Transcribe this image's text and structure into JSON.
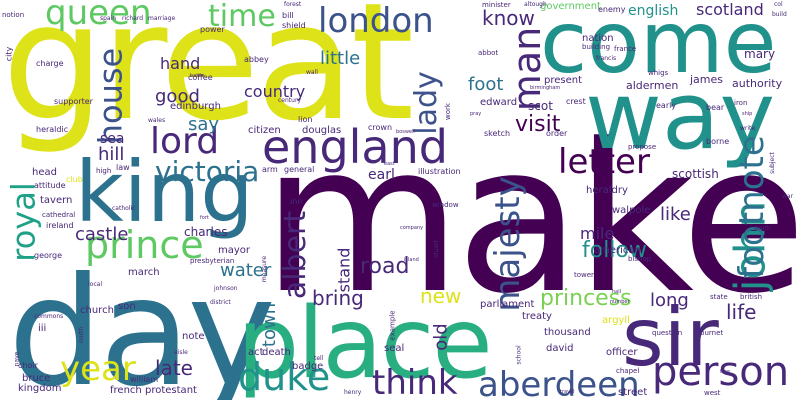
{
  "words": {
    "make": "make",
    "great": "great",
    "day": "day",
    "come": "come",
    "way": "way",
    "place": "place",
    "king": "king",
    "sir": "sir",
    "england": "england",
    "prince": "prince",
    "person": "person",
    "duke": "duke",
    "aberdeen": "aberdeen",
    "think": "think",
    "year": "year",
    "letter": "letter",
    "london": "london",
    "queen": "queen",
    "time": "time",
    "house": "house",
    "lord": "lord",
    "man": "man",
    "lady": "lady",
    "royal": "royal",
    "majesty": "majesty",
    "john": "john",
    "footnote": "footnote",
    "victoria": "victoria",
    "albert": "albert",
    "princess": "princess",
    "long": "long",
    "follow": "follow",
    "mile": "mile",
    "castle": "castle",
    "road": "road",
    "bring": "bring",
    "water": "water",
    "late": "late",
    "new": "new",
    "old": "old",
    "town": "town",
    "stand": "stand",
    "life": "life",
    "visit": "visit",
    "know": "know",
    "foot": "foot",
    "scotland": "scotland",
    "government": "government",
    "english": "english",
    "country": "country",
    "little": "little",
    "hand": "hand",
    "good": "good",
    "say": "say",
    "hill": "hill",
    "sea": "sea",
    "like": "like",
    "earl": "earl",
    "scottish": "scottish",
    "edinburgh": "edinburgh",
    "charles": "charles",
    "mary": "mary",
    "nation": "nation",
    "authority": "authority",
    "james": "james",
    "aldermen": "aldermen",
    "present": "present",
    "edward": "edward",
    "scot": "scot",
    "douglas": "douglas",
    "citizen": "citizen",
    "walpole": "walpole",
    "heraldry": "heraldry",
    "american": "american",
    "parliament": "parliament",
    "treaty": "treaty",
    "argyll": "argyll",
    "thousand": "thousand",
    "david": "david",
    "officer": "officer",
    "street": "street",
    "son": "son",
    "note": "note",
    "act": "act",
    "death": "death",
    "mayor": "mayor",
    "march": "march",
    "badge": "badge",
    "church": "church",
    "iii": "iii",
    "seal": "seal",
    "bruce": "bruce",
    "kingdom": "kingdom",
    "french": "french",
    "protestant": "protestant",
    "william": "william",
    "choir": "choir",
    "head": "head",
    "tavern": "tavern",
    "attitude": "attitude",
    "club": "club",
    "ireland": "ireland",
    "george": "george",
    "cathedral": "cathedral",
    "heraldic": "heraldic",
    "supporter": "supporter",
    "charge": "charge",
    "city": "city",
    "notion": "notion",
    "bill": "bill",
    "shield": "shield",
    "power": "power",
    "coffee": "coffee",
    "abbey": "abbey",
    "crown": "crown",
    "lion": "lion",
    "arm": "arm",
    "general": "general",
    "illustration": "illustration",
    "sketch": "sketch",
    "propose": "propose",
    "borne": "borne",
    "early": "early",
    "bear": "bear",
    "iron": "iron",
    "whigs": "whigs",
    "building": "building",
    "france": "france",
    "francis": "francis",
    "abbot": "abbot",
    "enemy": "enemy",
    "minister": "minister",
    "order": "order",
    "inn": "inn",
    "window": "window",
    "presbyterian": "presbyterian",
    "tower": "tower",
    "bishop": "bishop",
    "question": "question",
    "state": "state",
    "british": "british",
    "chapel": "chapel",
    "burnet": "burnet",
    "west": "west",
    "crest": "crest",
    "work": "work",
    "example": "example",
    "law": "law",
    "high": "high",
    "catholic": "catholic",
    "measure": "measure",
    "district": "district",
    "johnson": "johnson",
    "century": "century",
    "wall": "wall",
    "north": "north",
    "commons": "commons",
    "local": "local",
    "aisle": "aisle",
    "henry": "henry",
    "tell": "tell",
    "school": "school",
    "spain": "spain",
    "richard": "richard",
    "marriage": "marriage",
    "forest": "forest",
    "altough": "altough",
    "col": "col",
    "build": "build",
    "south": "south",
    "subject": "subject",
    "write": "write",
    "war": "war",
    "nave": "nave",
    "wales": "wales",
    "birmingham": "birmingham",
    "island": "island",
    "company": "company",
    "stuart": "stuart",
    "travel": "travel",
    "battle": "battle",
    "boswell": "boswell",
    "number": "number",
    "east": "east",
    "tree": "tree",
    "ship": "ship",
    "pray": "pray",
    "fort": "fort",
    "hall": "hall"
  }
}
